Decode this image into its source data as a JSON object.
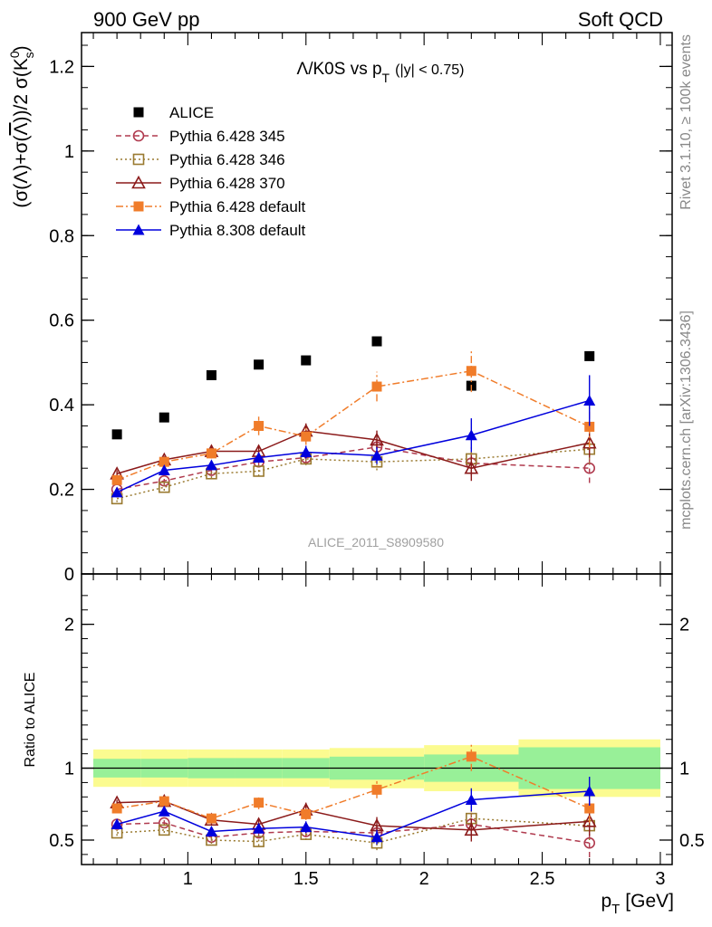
{
  "header": {
    "left": "900 GeV pp",
    "right": "Soft QCD"
  },
  "side_labels": {
    "rivet": "Rivet 3.1.10, ≥ 100k events",
    "mcplots": "mcplots.cern.ch [arXiv:1306.3436]"
  },
  "watermark": "ALICE_2011_S8909580",
  "chart_data": [
    {
      "type": "scatter",
      "title": "Λ/K0S vs p_T (|y| < 0.75)",
      "title_main": "Λ/K0S vs p",
      "title_sub": "T",
      "title_tail": "(|y| < 0.75)",
      "ylabel": "(σ(Λ)+σ(Λ̅))/2 σ(K⁰s)",
      "xlim": [
        0.55,
        3.05
      ],
      "ylim": [
        0,
        1.28
      ],
      "yticks": [
        0,
        0.2,
        0.4,
        0.6,
        0.8,
        1,
        1.2
      ],
      "ytick_labels": [
        "0",
        "0.2",
        "0.4",
        "0.6",
        "0.8",
        "1",
        "1.2"
      ],
      "legend_position": "top-left",
      "series": [
        {
          "name": "ALICE",
          "marker": "square-filled",
          "color": "#000000",
          "line": "none",
          "x": [
            0.7,
            0.9,
            1.1,
            1.3,
            1.5,
            1.8,
            2.2,
            2.7
          ],
          "y": [
            0.33,
            0.37,
            0.47,
            0.495,
            0.505,
            0.55,
            0.445,
            0.515
          ]
        },
        {
          "name": "Pythia 6.428 345",
          "marker": "circle-open",
          "color": "#b03a4e",
          "line": "dashed",
          "x": [
            0.7,
            0.9,
            1.1,
            1.3,
            1.5,
            1.8,
            2.2,
            2.7
          ],
          "y": [
            0.2,
            0.22,
            0.245,
            0.265,
            0.275,
            0.3,
            0.262,
            0.25
          ],
          "err": [
            0.008,
            0.008,
            0.01,
            0.012,
            0.015,
            0.02,
            0.03,
            0.035
          ]
        },
        {
          "name": "Pythia 6.428 346",
          "marker": "square-open",
          "color": "#9a7a30",
          "line": "dotted",
          "x": [
            0.7,
            0.9,
            1.1,
            1.3,
            1.5,
            1.8,
            2.2,
            2.7
          ],
          "y": [
            0.178,
            0.205,
            0.237,
            0.243,
            0.272,
            0.265,
            0.272,
            0.295
          ],
          "err": [
            0.008,
            0.008,
            0.01,
            0.012,
            0.015,
            0.02,
            0.03,
            0.035
          ]
        },
        {
          "name": "Pythia 6.428 370",
          "marker": "triangle-open",
          "color": "#8b1a1a",
          "line": "solid",
          "x": [
            0.7,
            0.9,
            1.1,
            1.3,
            1.5,
            1.8,
            2.2,
            2.7
          ],
          "y": [
            0.237,
            0.27,
            0.29,
            0.29,
            0.338,
            0.317,
            0.25,
            0.31
          ],
          "err": [
            0.008,
            0.008,
            0.012,
            0.012,
            0.018,
            0.022,
            0.03,
            0.035
          ]
        },
        {
          "name": "Pythia 6.428 default",
          "marker": "square-filled",
          "color": "#f07c2a",
          "line": "dashdot",
          "x": [
            0.7,
            0.9,
            1.1,
            1.3,
            1.5,
            1.8,
            2.2,
            2.7
          ],
          "y": [
            0.222,
            0.265,
            0.285,
            0.35,
            0.325,
            0.443,
            0.48,
            0.348
          ],
          "err": [
            0.008,
            0.01,
            0.012,
            0.022,
            0.02,
            0.035,
            0.05,
            0.05
          ]
        },
        {
          "name": "Pythia 8.308 default",
          "marker": "triangle-filled",
          "color": "#0000dd",
          "line": "solid",
          "x": [
            0.7,
            0.9,
            1.1,
            1.3,
            1.5,
            1.8,
            2.2,
            2.7
          ],
          "y": [
            0.193,
            0.245,
            0.257,
            0.275,
            0.288,
            0.28,
            0.328,
            0.41
          ],
          "err": [
            0.008,
            0.01,
            0.01,
            0.012,
            0.015,
            0.02,
            0.04,
            0.06
          ]
        }
      ]
    },
    {
      "type": "scatter",
      "ylabel": "Ratio to ALICE",
      "xlabel": "p_T [GeV]",
      "xlabel_main": "p",
      "xlabel_sub": "T",
      "xlabel_tail": "[GeV]",
      "xlim": [
        0.55,
        3.05
      ],
      "ylim": [
        0.33,
        2.35
      ],
      "xticks": [
        1,
        1.5,
        2,
        2.5,
        3
      ],
      "xtick_labels": [
        "1",
        "1.5",
        "2",
        "2.5",
        "3"
      ],
      "yticks": [
        0.5,
        1,
        2
      ],
      "ytick_labels": [
        "0.5",
        "1",
        "2"
      ],
      "reference_line": 1,
      "bands": {
        "bin_edges": [
          0.6,
          0.8,
          1.0,
          1.2,
          1.4,
          1.6,
          2.0,
          2.4,
          3.0
        ],
        "inner_halfwidth": [
          0.065,
          0.065,
          0.07,
          0.07,
          0.07,
          0.08,
          0.095,
          0.145
        ],
        "outer_halfwidth": [
          0.13,
          0.13,
          0.13,
          0.13,
          0.13,
          0.14,
          0.16,
          0.2
        ],
        "inner_color": "#98f098",
        "outer_color": "#fbfb90"
      },
      "series": [
        {
          "name": "Pythia 6.428 345",
          "marker": "circle-open",
          "color": "#b03a4e",
          "line": "dashed",
          "x": [
            0.7,
            0.9,
            1.1,
            1.3,
            1.5,
            1.8,
            2.2,
            2.7
          ],
          "y": [
            0.61,
            0.62,
            0.52,
            0.55,
            0.56,
            0.55,
            0.61,
            0.48
          ],
          "err": [
            0.02,
            0.02,
            0.025,
            0.03,
            0.04,
            0.05,
            0.08,
            0.1
          ]
        },
        {
          "name": "Pythia 6.428 346",
          "marker": "square-open",
          "color": "#9a7a30",
          "line": "dotted",
          "x": [
            0.7,
            0.9,
            1.1,
            1.3,
            1.5,
            1.8,
            2.2,
            2.7
          ],
          "y": [
            0.55,
            0.57,
            0.5,
            0.49,
            0.54,
            0.48,
            0.65,
            0.6
          ],
          "err": [
            0.02,
            0.02,
            0.025,
            0.03,
            0.04,
            0.05,
            0.08,
            0.1
          ]
        },
        {
          "name": "Pythia 6.428 370",
          "marker": "triangle-open",
          "color": "#8b1a1a",
          "line": "solid",
          "x": [
            0.7,
            0.9,
            1.1,
            1.3,
            1.5,
            1.8,
            2.2,
            2.7
          ],
          "y": [
            0.76,
            0.77,
            0.64,
            0.61,
            0.71,
            0.6,
            0.57,
            0.63
          ],
          "err": [
            0.02,
            0.02,
            0.03,
            0.03,
            0.05,
            0.06,
            0.08,
            0.1
          ]
        },
        {
          "name": "Pythia 6.428 default",
          "marker": "square-filled",
          "color": "#f07c2a",
          "line": "dashdot",
          "x": [
            0.7,
            0.9,
            1.1,
            1.3,
            1.5,
            1.8,
            2.2,
            2.7
          ],
          "y": [
            0.72,
            0.77,
            0.65,
            0.76,
            0.68,
            0.85,
            1.08,
            0.72
          ],
          "err": [
            0.02,
            0.025,
            0.03,
            0.045,
            0.04,
            0.06,
            0.1,
            0.1
          ]
        },
        {
          "name": "Pythia 8.308 default",
          "marker": "triangle-filled",
          "color": "#0000dd",
          "line": "solid",
          "x": [
            0.7,
            0.9,
            1.1,
            1.3,
            1.5,
            1.8,
            2.2,
            2.7
          ],
          "y": [
            0.61,
            0.7,
            0.56,
            0.58,
            0.59,
            0.52,
            0.78,
            0.84
          ],
          "err": [
            0.02,
            0.025,
            0.03,
            0.03,
            0.04,
            0.05,
            0.08,
            0.1
          ]
        }
      ]
    }
  ]
}
